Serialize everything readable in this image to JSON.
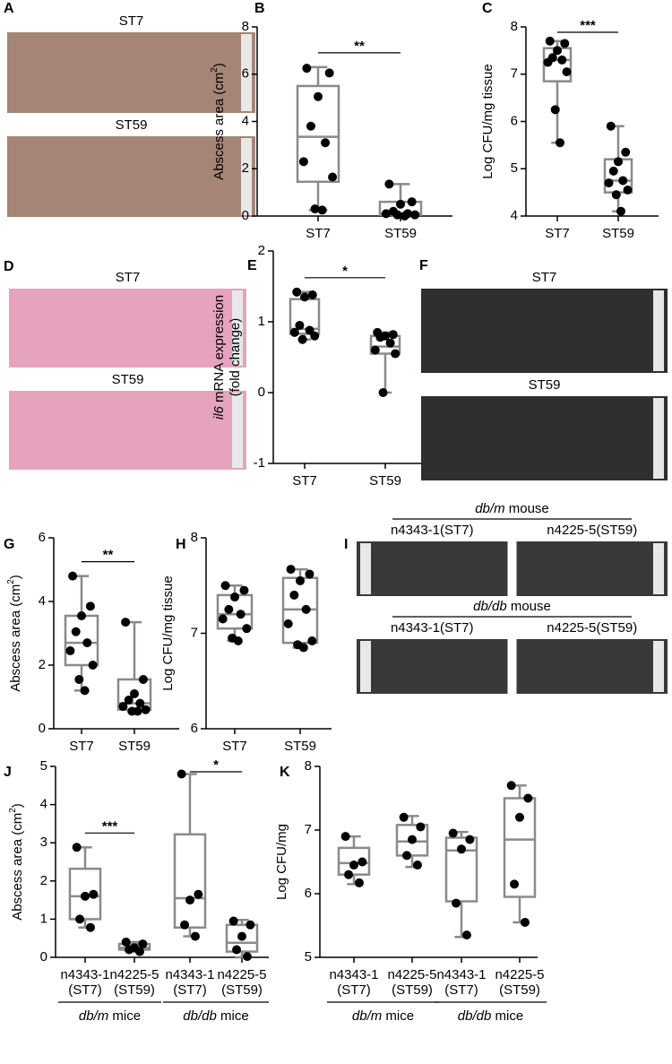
{
  "chart_data": [
    {
      "type": "photo",
      "panel": "A",
      "color": "#a58575",
      "rows": [
        {
          "labels": [
            "ST7"
          ]
        },
        {
          "labels": [
            "ST59"
          ]
        }
      ]
    },
    {
      "type": "box",
      "panel": "B",
      "ylabel": [
        [
          {
            "text": "Abscess area (cm"
          },
          {
            "text": "2",
            "sup": true
          },
          {
            "text": ")"
          }
        ]
      ],
      "categories": [
        [
          "ST7"
        ],
        [
          "ST59"
        ]
      ],
      "ylim": [
        0,
        8
      ],
      "yticks": [
        0,
        2,
        4,
        6,
        8
      ],
      "significance": [
        "**"
      ],
      "boxes": [
        {
          "min": 0.25,
          "q1": 1.45,
          "median": 3.35,
          "q3": 5.5,
          "max": 6.3,
          "points": [
            6.25,
            6.05,
            5.05,
            3.8,
            3.1,
            2.3,
            1.65,
            0.3,
            0.25
          ]
        },
        {
          "min": 0,
          "q1": 0.05,
          "median": 0.1,
          "q3": 0.6,
          "max": 1.35,
          "points": [
            1.35,
            0.6,
            0.5,
            0.2,
            0.1,
            0.1,
            0.05,
            0.05,
            0
          ]
        }
      ]
    },
    {
      "type": "box",
      "panel": "C",
      "ylabel": [
        [
          {
            "text": "Log CFU/mg tissue"
          }
        ]
      ],
      "categories": [
        [
          "ST7"
        ],
        [
          "ST59"
        ]
      ],
      "ylim": [
        4,
        8
      ],
      "yticks": [
        4,
        5,
        6,
        7,
        8
      ],
      "significance": [
        "***"
      ],
      "boxes": [
        {
          "min": 5.55,
          "q1": 6.85,
          "median": 7.3,
          "q3": 7.55,
          "max": 7.7,
          "points": [
            7.7,
            7.65,
            7.5,
            7.35,
            7.3,
            7.25,
            7.05,
            6.25,
            5.55
          ]
        },
        {
          "min": 4.1,
          "q1": 4.5,
          "median": 4.75,
          "q3": 5.2,
          "max": 5.9,
          "points": [
            5.9,
            5.35,
            5.15,
            4.95,
            4.75,
            4.7,
            4.55,
            4.45,
            4.1
          ]
        }
      ]
    },
    {
      "type": "photo",
      "panel": "D",
      "color": "#e6a3bd",
      "rows": [
        {
          "labels": [
            "ST7"
          ]
        },
        {
          "labels": [
            "ST59"
          ]
        }
      ]
    },
    {
      "type": "box",
      "panel": "E",
      "ylabel": [
        [
          {
            "text": "il6",
            "italic": true
          },
          {
            "text": " mRNA expression"
          }
        ],
        [
          {
            "text": "(fold change)"
          }
        ]
      ],
      "categories": [
        [
          "ST7"
        ],
        [
          "ST59"
        ]
      ],
      "ylim": [
        -1,
        2
      ],
      "yticks": [
        -1,
        0,
        1,
        2
      ],
      "significance": [
        "*"
      ],
      "boxes": [
        {
          "min": 0.75,
          "q1": 0.83,
          "median": 0.9,
          "q3": 1.32,
          "max": 1.42,
          "points": [
            1.42,
            1.38,
            1.35,
            0.95,
            0.88,
            0.85,
            0.8,
            0.75
          ]
        },
        {
          "min": 0,
          "q1": 0.55,
          "median": 0.65,
          "q3": 0.8,
          "max": 0.85,
          "points": [
            0.85,
            0.82,
            0.8,
            0.78,
            0.7,
            0.6,
            0.55,
            0
          ]
        }
      ]
    },
    {
      "type": "photo",
      "panel": "F",
      "color": "#302e2e",
      "rows": [
        {
          "labels": [
            "ST7"
          ]
        },
        {
          "labels": [
            "ST59"
          ]
        }
      ]
    },
    {
      "type": "box",
      "panel": "G",
      "ylabel": [
        [
          {
            "text": "Abscess area (cm"
          },
          {
            "text": "2",
            "sup": true
          },
          {
            "text": ")"
          }
        ]
      ],
      "categories": [
        [
          "ST7"
        ],
        [
          "ST59"
        ]
      ],
      "ylim": [
        0,
        6
      ],
      "yticks": [
        0,
        2,
        4,
        6
      ],
      "significance": [
        "**"
      ],
      "boxes": [
        {
          "min": 1.2,
          "q1": 2.0,
          "median": 2.7,
          "q3": 3.55,
          "max": 4.8,
          "points": [
            4.8,
            3.85,
            3.55,
            3.05,
            2.7,
            2.45,
            2.0,
            1.55,
            1.2
          ]
        },
        {
          "min": 0.55,
          "q1": 0.6,
          "median": 0.8,
          "q3": 1.55,
          "max": 3.35,
          "points": [
            3.35,
            1.55,
            1.1,
            0.9,
            0.8,
            0.7,
            0.6,
            0.55,
            0.55
          ]
        }
      ]
    },
    {
      "type": "box",
      "panel": "H",
      "ylabel": [
        [
          {
            "text": "Log CFU/mg tissue"
          }
        ]
      ],
      "categories": [
        [
          "ST7"
        ],
        [
          "ST59"
        ]
      ],
      "ylim": [
        6,
        8
      ],
      "yticks": [
        6,
        7,
        8
      ],
      "significance": [],
      "boxes": [
        {
          "min": 6.92,
          "q1": 7.05,
          "median": 7.2,
          "q3": 7.4,
          "max": 7.5,
          "points": [
            7.5,
            7.45,
            7.38,
            7.25,
            7.2,
            7.15,
            7.05,
            6.95,
            6.92
          ]
        },
        {
          "min": 6.85,
          "q1": 6.9,
          "median": 7.25,
          "q3": 7.58,
          "max": 7.67,
          "points": [
            7.67,
            7.62,
            7.55,
            7.4,
            7.25,
            7.1,
            6.92,
            6.88,
            6.85
          ]
        }
      ]
    },
    {
      "type": "photo",
      "panel": "I",
      "color": "#3a3838",
      "rows": [
        {
          "title": [
            {
              "text": "db/m",
              "italic": true
            },
            {
              "text": " mouse"
            }
          ],
          "labels": [
            "n4343-1(ST7)",
            "n4225-5(ST59)"
          ]
        },
        {
          "title": [
            {
              "text": "db/db",
              "italic": true
            },
            {
              "text": " mouse"
            }
          ],
          "labels": [
            "n4343-1(ST7)",
            "n4225-5(ST59)"
          ]
        }
      ]
    },
    {
      "type": "box",
      "panel": "J",
      "ylabel": [
        [
          {
            "text": "Abscess area (cm"
          },
          {
            "text": "2",
            "sup": true
          },
          {
            "text": ")"
          }
        ]
      ],
      "categories": [
        [
          "n4343-1",
          "(ST7)"
        ],
        [
          "n4225-5",
          "(ST59)"
        ],
        [
          "n4343-1",
          "(ST7)"
        ],
        [
          "n4225-5",
          "(ST59)"
        ]
      ],
      "groups": [
        [
          {
            "text": "db/m",
            "italic": true
          },
          {
            "text": " mice"
          }
        ],
        [
          {
            "text": "db/db",
            "italic": true
          },
          {
            "text": " mice"
          }
        ]
      ],
      "ylim": [
        0,
        5
      ],
      "yticks": [
        0,
        1,
        2,
        3,
        4,
        5
      ],
      "significance": [
        "***",
        "*"
      ],
      "boxes": [
        {
          "min": 0.78,
          "q1": 1.0,
          "median": 1.6,
          "q3": 2.32,
          "max": 2.88,
          "points": [
            2.88,
            1.65,
            1.6,
            1.0,
            0.78
          ]
        },
        {
          "min": 0.15,
          "q1": 0.2,
          "median": 0.25,
          "q3": 0.35,
          "max": 0.4,
          "points": [
            0.4,
            0.35,
            0.25,
            0.2,
            0.15
          ]
        },
        {
          "min": 0.55,
          "q1": 0.78,
          "median": 1.55,
          "q3": 3.22,
          "max": 4.8,
          "points": [
            4.8,
            1.65,
            1.5,
            0.85,
            0.55
          ]
        },
        {
          "min": 0,
          "q1": 0.15,
          "median": 0.38,
          "q3": 0.85,
          "max": 0.98,
          "points": [
            0.95,
            0.85,
            0.55,
            0.2,
            0.02
          ]
        }
      ]
    },
    {
      "type": "box",
      "panel": "K",
      "ylabel": [
        [
          {
            "text": "Log CFU/mg"
          }
        ]
      ],
      "categories": [
        [
          "n4343-1",
          "(ST7)"
        ],
        [
          "n4225-5",
          "(ST59)"
        ],
        [
          "n4343-1",
          "(ST7)"
        ],
        [
          "n4225-5",
          "(ST59)"
        ]
      ],
      "groups": [
        [
          {
            "text": "db/m",
            "italic": true
          },
          {
            "text": " mice"
          }
        ],
        [
          {
            "text": "db/db",
            "italic": true
          },
          {
            "text": " mice"
          }
        ]
      ],
      "ylim": [
        5,
        8
      ],
      "yticks": [
        5,
        6,
        7,
        8
      ],
      "significance": [],
      "boxes": [
        {
          "min": 6.15,
          "q1": 6.3,
          "median": 6.48,
          "q3": 6.72,
          "max": 6.9,
          "points": [
            6.9,
            6.5,
            6.45,
            6.3,
            6.17
          ]
        },
        {
          "min": 6.42,
          "q1": 6.6,
          "median": 6.82,
          "q3": 7.08,
          "max": 7.22,
          "points": [
            7.2,
            7.05,
            6.85,
            6.6,
            6.45
          ]
        },
        {
          "min": 5.32,
          "q1": 5.88,
          "median": 6.68,
          "q3": 6.88,
          "max": 6.97,
          "points": [
            6.95,
            6.85,
            6.7,
            5.85,
            5.35
          ]
        },
        {
          "min": 5.55,
          "q1": 5.95,
          "median": 6.85,
          "q3": 7.5,
          "max": 7.7,
          "points": [
            7.7,
            7.5,
            7.2,
            6.15,
            5.55
          ]
        }
      ]
    }
  ]
}
